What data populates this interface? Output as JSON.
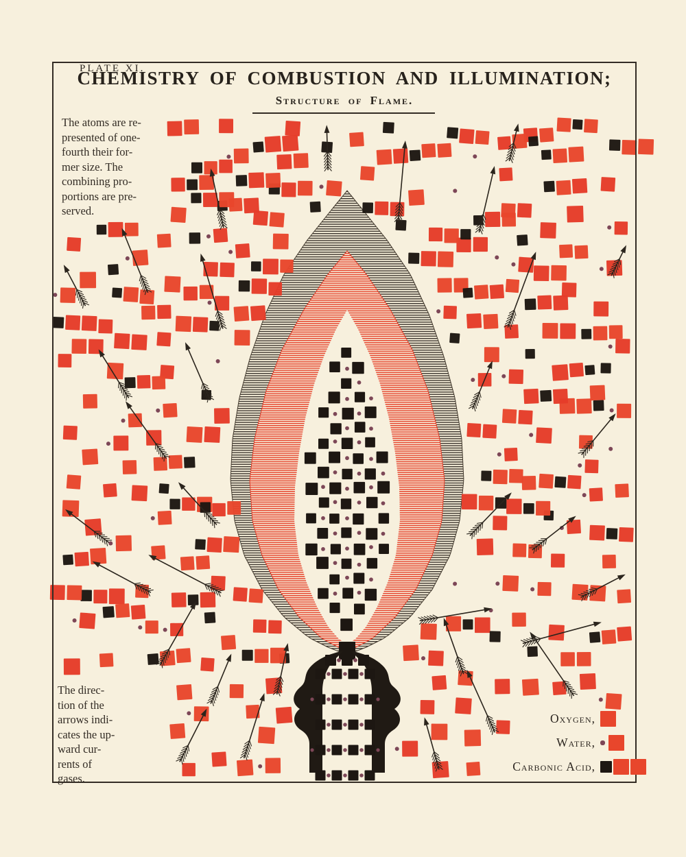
{
  "palette": {
    "background": "#f7f0dd",
    "frame": "#332c24",
    "ink": "#2b251f",
    "oxygen_red": "#e8462c",
    "oxygen_red_alt": "#e53c29",
    "carbon_black": "#1d1712",
    "hydrogen_dot": "#7d4757",
    "hatch_black": "#38permanently"
  },
  "header": {
    "plate_label": "PLATE XI.",
    "title": "CHEMISTRY OF COMBUSTION AND ILLUMINATION;",
    "subtitle": "Structure of Flame."
  },
  "notes": {
    "atoms": "The atoms are re-\npresented of one-\nfourth their for-\nmer size.   The\ncombining  pro-\nportions are pre-\nserved.",
    "arrows": "The  direc-\ntion  of  the\narrows indi-\ncates the up-\nward  cur-\nrents   of\ngases."
  },
  "legend": {
    "items": [
      {
        "id": "oxygen",
        "label": "Oxygen,",
        "molecule": [
          "red"
        ]
      },
      {
        "id": "water",
        "label": "Water,",
        "molecule": [
          "dot",
          "red"
        ]
      },
      {
        "id": "carbonic-acid",
        "label": "Carbonic Acid,",
        "molecule": [
          "black",
          "red",
          "red"
        ]
      }
    ]
  },
  "scatter": {
    "seed": 23,
    "molecule_count": 215,
    "arrow_count": 40,
    "min_molecule_spacing": 36,
    "min_arrow_spacing": 92,
    "mix_upper": {
      "oxygen": 0.32,
      "oxygen_pair": 0.18,
      "carbonic_acid": 0.25,
      "water": 0.13,
      "carbon": 0.09,
      "hydrogen": 0.03
    },
    "mix_bottom": {
      "oxygen": 0.92,
      "water": 0.08
    }
  }
}
